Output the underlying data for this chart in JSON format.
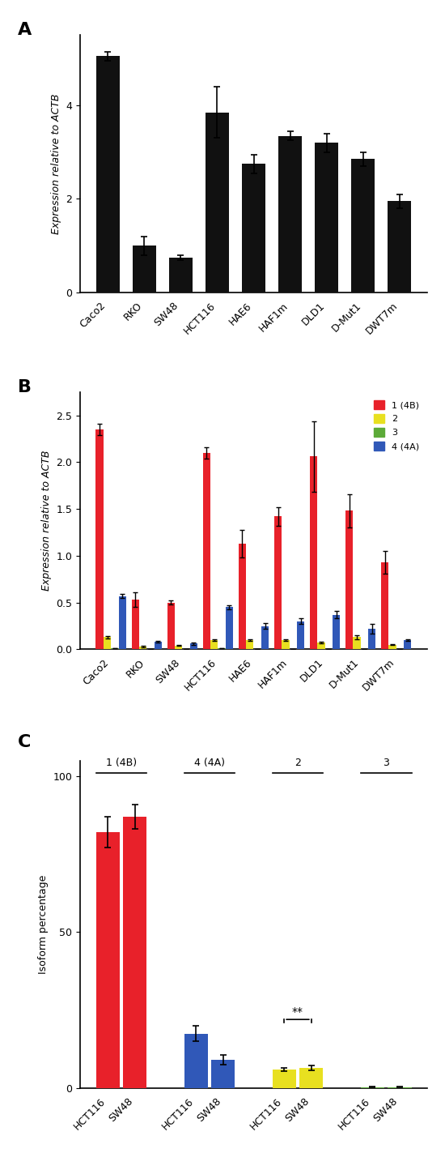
{
  "panel_A": {
    "categories": [
      "Caco2",
      "RKO",
      "SW48",
      "HCT116",
      "HAE6",
      "HAF1m",
      "DLD1",
      "D-Mut1",
      "DWT7m"
    ],
    "values": [
      5.05,
      1.0,
      0.75,
      3.85,
      2.75,
      3.35,
      3.2,
      2.85,
      1.95
    ],
    "errors": [
      0.1,
      0.2,
      0.05,
      0.55,
      0.2,
      0.1,
      0.2,
      0.15,
      0.15
    ],
    "bar_color": "#111111",
    "ylabel": "Expression relative to ACTB",
    "ylim": [
      0,
      5.5
    ],
    "yticks": [
      0,
      2,
      4
    ]
  },
  "panel_B": {
    "categories": [
      "Caco2",
      "RKO",
      "SW48",
      "HCT116",
      "HAE6",
      "HAF1m",
      "DLD1",
      "D-Mut1",
      "DWT7m"
    ],
    "series": {
      "1 (4B)": {
        "values": [
          2.35,
          0.53,
          0.5,
          2.1,
          1.13,
          1.42,
          2.06,
          1.48,
          0.93
        ],
        "errors": [
          0.06,
          0.08,
          0.02,
          0.06,
          0.15,
          0.1,
          0.38,
          0.18,
          0.12
        ],
        "color": "#e8212a"
      },
      "2": {
        "values": [
          0.13,
          0.03,
          0.04,
          0.1,
          0.1,
          0.1,
          0.07,
          0.13,
          0.05
        ],
        "errors": [
          0.01,
          0.005,
          0.005,
          0.01,
          0.01,
          0.01,
          0.01,
          0.02,
          0.005
        ],
        "color": "#e8e020"
      },
      "3": {
        "values": [
          0.01,
          0.005,
          0.005,
          0.01,
          0.005,
          0.005,
          0.005,
          0.005,
          0.005
        ],
        "errors": [
          0.002,
          0.001,
          0.001,
          0.002,
          0.001,
          0.001,
          0.001,
          0.001,
          0.001
        ],
        "color": "#5caa38"
      },
      "4 (4A)": {
        "values": [
          0.57,
          0.08,
          0.06,
          0.45,
          0.25,
          0.3,
          0.37,
          0.22,
          0.1
        ],
        "errors": [
          0.02,
          0.01,
          0.01,
          0.02,
          0.03,
          0.03,
          0.04,
          0.05,
          0.01
        ],
        "color": "#3058b8"
      }
    },
    "ylabel": "Expression relative to ACTB",
    "ylim": [
      0,
      2.75
    ],
    "yticks": [
      0,
      0.5,
      1.0,
      1.5,
      2.0,
      2.5
    ]
  },
  "panel_C": {
    "groups": [
      "1 (4B)",
      "4 (4A)",
      "2",
      "3"
    ],
    "categories": [
      "HCT116",
      "SW48"
    ],
    "data": {
      "1 (4B)": {
        "HCT116": {
          "value": 82.0,
          "error": 5.0
        },
        "SW48": {
          "value": 87.0,
          "error": 4.0
        }
      },
      "4 (4A)": {
        "HCT116": {
          "value": 17.5,
          "error": 2.5
        },
        "SW48": {
          "value": 9.0,
          "error": 1.5
        }
      },
      "2": {
        "HCT116": {
          "value": 6.0,
          "error": 0.5
        },
        "SW48": {
          "value": 6.5,
          "error": 0.8
        }
      },
      "3": {
        "HCT116": {
          "value": 0.3,
          "error": 0.1
        },
        "SW48": {
          "value": 0.3,
          "error": 0.1
        }
      }
    },
    "colors": {
      "1 (4B)": "#e8212a",
      "4 (4A)": "#3058b8",
      "2": "#e8e020",
      "3": "#5caa38"
    },
    "ylabel": "Isoform percentage",
    "ylim": [
      0,
      105
    ],
    "yticks": [
      0,
      50,
      100
    ]
  }
}
